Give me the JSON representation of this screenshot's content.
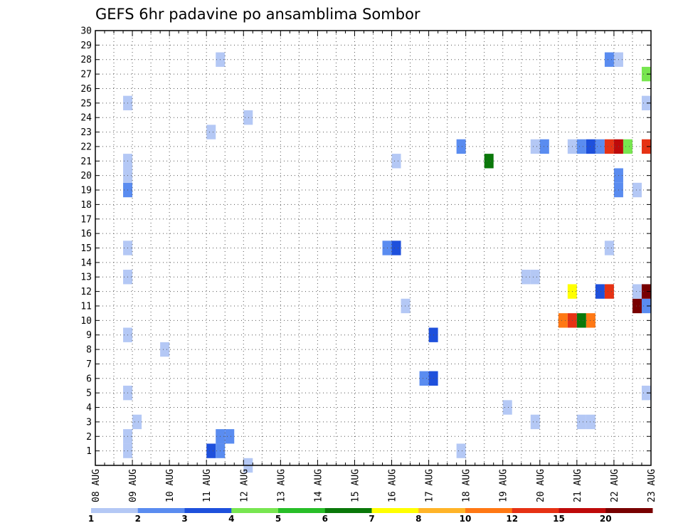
{
  "chart_data": {
    "type": "heatmap",
    "title": "GEFS 6hr padavine po ansamblima Sombor",
    "xlabel": "",
    "ylabel": "",
    "x_tick_labels": [
      "08 AUG",
      "09 AUG",
      "10 AUG",
      "11 AUG",
      "12 AUG",
      "13 AUG",
      "14 AUG",
      "15 AUG",
      "16 AUG",
      "17 AUG",
      "18 AUG",
      "19 AUG",
      "20 AUG",
      "21 AUG",
      "22 AUG",
      "23 AUG"
    ],
    "y_tick_labels": [
      "1",
      "2",
      "3",
      "4",
      "5",
      "6",
      "7",
      "8",
      "9",
      "10",
      "11",
      "12",
      "13",
      "14",
      "15",
      "16",
      "17",
      "18",
      "19",
      "20",
      "21",
      "22",
      "23",
      "24",
      "25",
      "26",
      "27",
      "28",
      "29",
      "30"
    ],
    "xlim": [
      0,
      60
    ],
    "ylim": [
      0,
      30
    ],
    "x_step_hours": 6,
    "grid": true,
    "colorbar": {
      "labels": [
        "1",
        "2",
        "3",
        "4",
        "5",
        "6",
        "7",
        "8",
        "10",
        "12",
        "15",
        "20"
      ],
      "colors": [
        "#b4c8f5",
        "#5a8cf0",
        "#1e50dc",
        "#78e650",
        "#28be28",
        "#0a780a",
        "#ffff00",
        "#ffb428",
        "#ff7814",
        "#e63214",
        "#be0a0a",
        "#780000"
      ],
      "placement": "bottom"
    },
    "cells": [
      {
        "t": 3,
        "m": 1,
        "c": 0
      },
      {
        "t": 3,
        "m": 2,
        "c": 0
      },
      {
        "t": 4,
        "m": 3,
        "c": 0
      },
      {
        "t": 3,
        "m": 5,
        "c": 0
      },
      {
        "t": 3,
        "m": 9,
        "c": 0
      },
      {
        "t": 3,
        "m": 13,
        "c": 0
      },
      {
        "t": 3,
        "m": 15,
        "c": 0
      },
      {
        "t": 3,
        "m": 19,
        "c": 1
      },
      {
        "t": 3,
        "m": 20,
        "c": 0
      },
      {
        "t": 3,
        "m": 21,
        "c": 0
      },
      {
        "t": 3,
        "m": 25,
        "c": 0
      },
      {
        "t": 7,
        "m": 8,
        "c": 0
      },
      {
        "t": 12,
        "m": 1,
        "c": 2
      },
      {
        "t": 13,
        "m": 1,
        "c": 1
      },
      {
        "t": 13,
        "m": 2,
        "c": 1
      },
      {
        "t": 14,
        "m": 2,
        "c": 1
      },
      {
        "t": 12,
        "m": 23,
        "c": 0
      },
      {
        "t": 13,
        "m": 28,
        "c": 0
      },
      {
        "t": 16,
        "m": 0,
        "c": 0
      },
      {
        "t": 16,
        "m": 24,
        "c": 0
      },
      {
        "t": 31,
        "m": 15,
        "c": 1
      },
      {
        "t": 32,
        "m": 15,
        "c": 2
      },
      {
        "t": 32,
        "m": 21,
        "c": 0
      },
      {
        "t": 33,
        "m": 11,
        "c": 0
      },
      {
        "t": 35,
        "m": 6,
        "c": 1
      },
      {
        "t": 36,
        "m": 6,
        "c": 2
      },
      {
        "t": 36,
        "m": 9,
        "c": 2
      },
      {
        "t": 39,
        "m": 1,
        "c": 0
      },
      {
        "t": 39,
        "m": 22,
        "c": 1
      },
      {
        "t": 42,
        "m": 21,
        "c": 5
      },
      {
        "t": 44,
        "m": 4,
        "c": 0
      },
      {
        "t": 46,
        "m": 13,
        "c": 0
      },
      {
        "t": 47,
        "m": 13,
        "c": 0
      },
      {
        "t": 47,
        "m": 3,
        "c": 0
      },
      {
        "t": 47,
        "m": 22,
        "c": 0
      },
      {
        "t": 48,
        "m": 22,
        "c": 1
      },
      {
        "t": 50,
        "m": 10,
        "c": 8
      },
      {
        "t": 51,
        "m": 10,
        "c": 9
      },
      {
        "t": 52,
        "m": 10,
        "c": 5
      },
      {
        "t": 53,
        "m": 10,
        "c": 8
      },
      {
        "t": 51,
        "m": 12,
        "c": 6
      },
      {
        "t": 51,
        "m": 22,
        "c": 0
      },
      {
        "t": 52,
        "m": 22,
        "c": 1
      },
      {
        "t": 53,
        "m": 22,
        "c": 2
      },
      {
        "t": 54,
        "m": 22,
        "c": 1
      },
      {
        "t": 55,
        "m": 22,
        "c": 9
      },
      {
        "t": 56,
        "m": 22,
        "c": 10
      },
      {
        "t": 57,
        "m": 22,
        "c": 3
      },
      {
        "t": 59,
        "m": 22,
        "c": 9
      },
      {
        "t": 52,
        "m": 3,
        "c": 0
      },
      {
        "t": 53,
        "m": 3,
        "c": 0
      },
      {
        "t": 54,
        "m": 12,
        "c": 2
      },
      {
        "t": 55,
        "m": 12,
        "c": 9
      },
      {
        "t": 55,
        "m": 15,
        "c": 0
      },
      {
        "t": 55,
        "m": 28,
        "c": 1
      },
      {
        "t": 56,
        "m": 28,
        "c": 0
      },
      {
        "t": 56,
        "m": 19,
        "c": 1
      },
      {
        "t": 56,
        "m": 20,
        "c": 1
      },
      {
        "t": 58,
        "m": 11,
        "c": 11
      },
      {
        "t": 59,
        "m": 11,
        "c": 1
      },
      {
        "t": 58,
        "m": 12,
        "c": 0
      },
      {
        "t": 59,
        "m": 12,
        "c": 11
      },
      {
        "t": 58,
        "m": 19,
        "c": 0
      },
      {
        "t": 59,
        "m": 5,
        "c": 0
      },
      {
        "t": 59,
        "m": 25,
        "c": 0
      },
      {
        "t": 59,
        "m": 27,
        "c": 3
      }
    ]
  }
}
